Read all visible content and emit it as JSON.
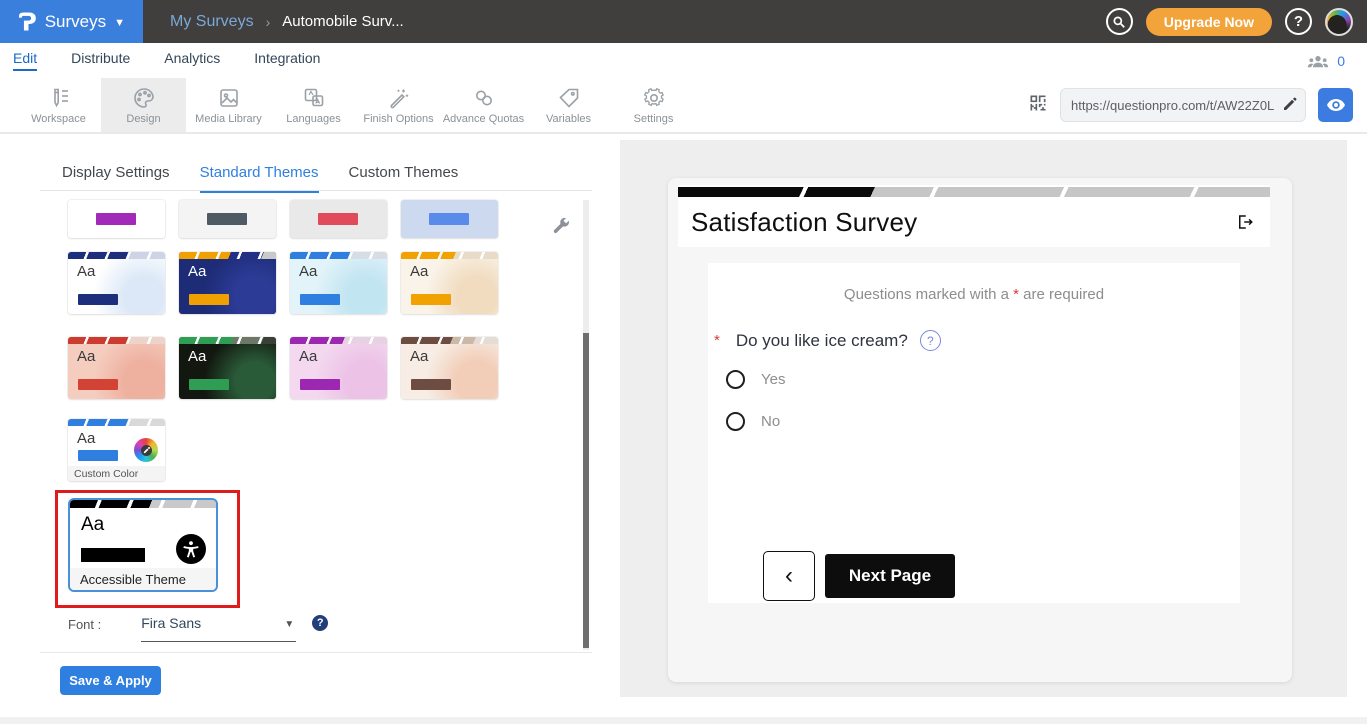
{
  "colors": {
    "brand_blue": "#3b7fdd",
    "upgrade_orange": "#f2a33a",
    "save_blue": "#2f7fe0",
    "annotation_red": "#e01b1b",
    "active_tab_blue": "#2f7fe0"
  },
  "topbar": {
    "brand_label": "Surveys",
    "breadcrumb_parent": "My Surveys",
    "breadcrumb_separator": "›",
    "breadcrumb_current": "Automobile Surv...",
    "upgrade_label": "Upgrade Now",
    "help_label": "?"
  },
  "nav": {
    "tabs": [
      {
        "label": "Edit",
        "active": true
      },
      {
        "label": "Distribute",
        "active": false
      },
      {
        "label": "Analytics",
        "active": false
      },
      {
        "label": "Integration",
        "active": false
      }
    ],
    "collaborators_count": "0"
  },
  "toolbar": {
    "items": [
      {
        "label": "Workspace",
        "active": false
      },
      {
        "label": "Design",
        "active": true
      },
      {
        "label": "Media Library",
        "active": false
      },
      {
        "label": "Languages",
        "active": false
      },
      {
        "label": "Finish Options",
        "active": false
      },
      {
        "label": "Advance Quotas",
        "active": false
      },
      {
        "label": "Variables",
        "active": false
      },
      {
        "label": "Settings",
        "active": false
      }
    ],
    "survey_url": "https://questionpro.com/t/AW22Z0L"
  },
  "design_panel": {
    "tabs": [
      {
        "label": "Display Settings",
        "active": false
      },
      {
        "label": "Standard Themes",
        "active": true
      },
      {
        "label": "Custom Themes",
        "active": false
      }
    ],
    "sample_text": "Aa",
    "partial_themes": [
      {
        "name": "purple-on-white",
        "bg": "#ffffff",
        "accent": "#a12bb8"
      },
      {
        "name": "slate-on-light",
        "bg": "#f4f4f4",
        "accent": "#4e5a64"
      },
      {
        "name": "red-on-gray",
        "bg": "#e9e9e9",
        "accent": "#e04a5a"
      },
      {
        "name": "blue-on-blue",
        "bg": "#ccd9ef",
        "accent": "#5b8bea"
      }
    ],
    "themes": [
      {
        "name": "navy-floral",
        "bg": "#ffffff",
        "accent": "#1d2f7c",
        "text": "#3a3a3a",
        "deco": "#dce8f7",
        "bar_stops": [
          [
            "#1d2f7c",
            62
          ],
          [
            "#ccd4e6",
            100
          ]
        ]
      },
      {
        "name": "navy-orange",
        "bg": "#1e2b77",
        "accent": "#f0a000",
        "text": "#ffffff",
        "deco": "#2c3b96",
        "bar_stops": [
          [
            "#f0a000",
            52
          ],
          [
            "#232f85",
            85
          ],
          [
            "#c9c9c9",
            100
          ]
        ]
      },
      {
        "name": "sky-blue",
        "bg": "#e2f3f9",
        "accent": "#2f7fe0",
        "text": "#3a3a3a",
        "deco": "#c2e5f2",
        "bar_stops": [
          [
            "#2f7fe0",
            62
          ],
          [
            "#d6dde4",
            100
          ]
        ]
      },
      {
        "name": "cream-orange",
        "bg": "#faf3e9",
        "accent": "#f2a200",
        "text": "#3a3a3a",
        "deco": "#f1dcc0",
        "bar_stops": [
          [
            "#f2a200",
            55
          ],
          [
            "#e8dcc8",
            100
          ]
        ]
      },
      {
        "name": "coral",
        "bg": "#f5cdbf",
        "accent": "#d24335",
        "text": "#3a3a3a",
        "deco": "#eeb09f",
        "bar_stops": [
          [
            "#cc3b2e",
            62
          ],
          [
            "#ecd4cb",
            100
          ]
        ]
      },
      {
        "name": "forest-dark",
        "bg": "#12170f",
        "accent": "#2f9e54",
        "text": "#ffffff",
        "deco": "#2a5b38",
        "bar_stops": [
          [
            "#2f9e54",
            55
          ],
          [
            "#6d7868",
            85
          ],
          [
            "#3a3f38",
            100
          ]
        ]
      },
      {
        "name": "orchid-pink",
        "bg": "#f3d8ef",
        "accent": "#9c27b0",
        "text": "#3a3a3a",
        "deco": "#ecc2e6",
        "bar_stops": [
          [
            "#9c27b0",
            55
          ],
          [
            "#e6d2e2",
            100
          ]
        ]
      },
      {
        "name": "earth-tan",
        "bg": "#f7ede5",
        "accent": "#6d4c41",
        "text": "#3a3a3a",
        "deco": "#f2cdb7",
        "bar_stops": [
          [
            "#6d4c41",
            52
          ],
          [
            "#c9b9a6",
            75
          ],
          [
            "#e3ddd6",
            100
          ]
        ]
      }
    ],
    "custom_color_theme": {
      "label": "Custom Color",
      "bg": "#ffffff",
      "accent": "#2f7fe0",
      "text": "#3a3a3a",
      "bar_stops": [
        [
          "#2f7fe0",
          62
        ],
        [
          "#d9d9d9",
          100
        ]
      ]
    },
    "accessible_theme": {
      "label": "Accessible Theme",
      "accent": "#000000",
      "selected": true,
      "bar_stops": [
        [
          "#000000",
          55
        ],
        [
          "#c9c9c9",
          100
        ]
      ]
    },
    "font_label": "Font :",
    "font_value": "Fira Sans",
    "save_label": "Save & Apply"
  },
  "preview": {
    "title": "Satisfaction Survey",
    "progress_percent": 33,
    "required_note_prefix": "Questions marked with a ",
    "required_star": "*",
    "required_note_suffix": " are required",
    "question": {
      "required_mark": "*",
      "text": "Do you like ice cream?",
      "help_label": "?",
      "options": [
        "Yes",
        "No"
      ]
    },
    "back_button_label": "‹",
    "next_button_label": "Next Page"
  }
}
